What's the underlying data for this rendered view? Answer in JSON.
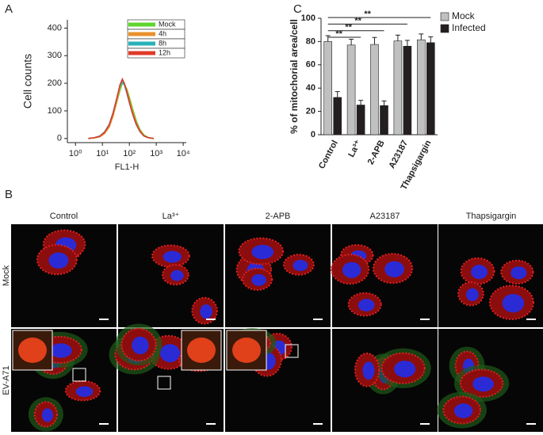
{
  "chart_data": [
    {
      "type": "line",
      "panel_label": "A",
      "x_label": "FL1-H",
      "y_label": "Cell counts",
      "xscale": "log",
      "xlim": [
        0.5,
        13000
      ],
      "ylim": [
        -15,
        430
      ],
      "xticks": [
        {
          "value": 1,
          "label": "10⁰"
        },
        {
          "value": 10,
          "label": "10¹"
        },
        {
          "value": 100,
          "label": "10²"
        },
        {
          "value": 1000,
          "label": "10³"
        },
        {
          "value": 10000,
          "label": "10⁴"
        }
      ],
      "yticks": [
        0,
        100,
        200,
        300,
        400
      ],
      "x": [
        3,
        5,
        8,
        12,
        18,
        25,
        35,
        45,
        55,
        65,
        80,
        100,
        130,
        180,
        250,
        350,
        500,
        800
      ],
      "series": [
        {
          "name": "Mock",
          "color": "#5ed62e",
          "values": [
            0,
            3,
            8,
            20,
            45,
            85,
            135,
            175,
            200,
            195,
            180,
            150,
            110,
            65,
            32,
            12,
            4,
            0
          ]
        },
        {
          "name": "4h",
          "color": "#e8902a",
          "values": [
            0,
            2,
            6,
            18,
            42,
            82,
            140,
            185,
            210,
            200,
            175,
            140,
            100,
            58,
            28,
            10,
            3,
            0
          ]
        },
        {
          "name": "8h",
          "color": "#2ab0b8",
          "values": [
            0,
            3,
            9,
            24,
            52,
            95,
            150,
            190,
            205,
            195,
            165,
            130,
            90,
            50,
            24,
            9,
            3,
            0
          ]
        },
        {
          "name": "12h",
          "color": "#e03a2a",
          "values": [
            0,
            3,
            8,
            22,
            50,
            92,
            150,
            195,
            215,
            200,
            170,
            132,
            92,
            52,
            25,
            9,
            3,
            0
          ]
        }
      ]
    },
    {
      "type": "bar",
      "panel_label": "C",
      "y_label": "% of mitochorial area/cell",
      "categories": [
        "Control",
        "La³⁺",
        "2-APB",
        "A23187",
        "Thapsigargin"
      ],
      "ylim": [
        0,
        100
      ],
      "yticks": [
        0,
        20,
        40,
        60,
        80,
        100
      ],
      "series": [
        {
          "name": "Mock",
          "color": "#c0c0c0",
          "values": [
            80,
            77,
            77.5,
            80.5,
            81.5
          ],
          "errors": [
            5,
            5,
            6,
            5,
            5
          ]
        },
        {
          "name": "Infected",
          "color": "#231f20",
          "values": [
            32,
            25.5,
            25,
            76,
            79
          ],
          "errors": [
            5,
            4,
            4,
            5,
            5
          ]
        }
      ],
      "significance": [
        "**",
        "**",
        "**",
        "**"
      ]
    }
  ],
  "panel_b": {
    "label": "B",
    "columns": [
      "Control",
      "La³⁺",
      "2-APB",
      "A23187",
      "Thapsigargin"
    ],
    "rows": [
      "Mock",
      "EV-A71"
    ]
  }
}
